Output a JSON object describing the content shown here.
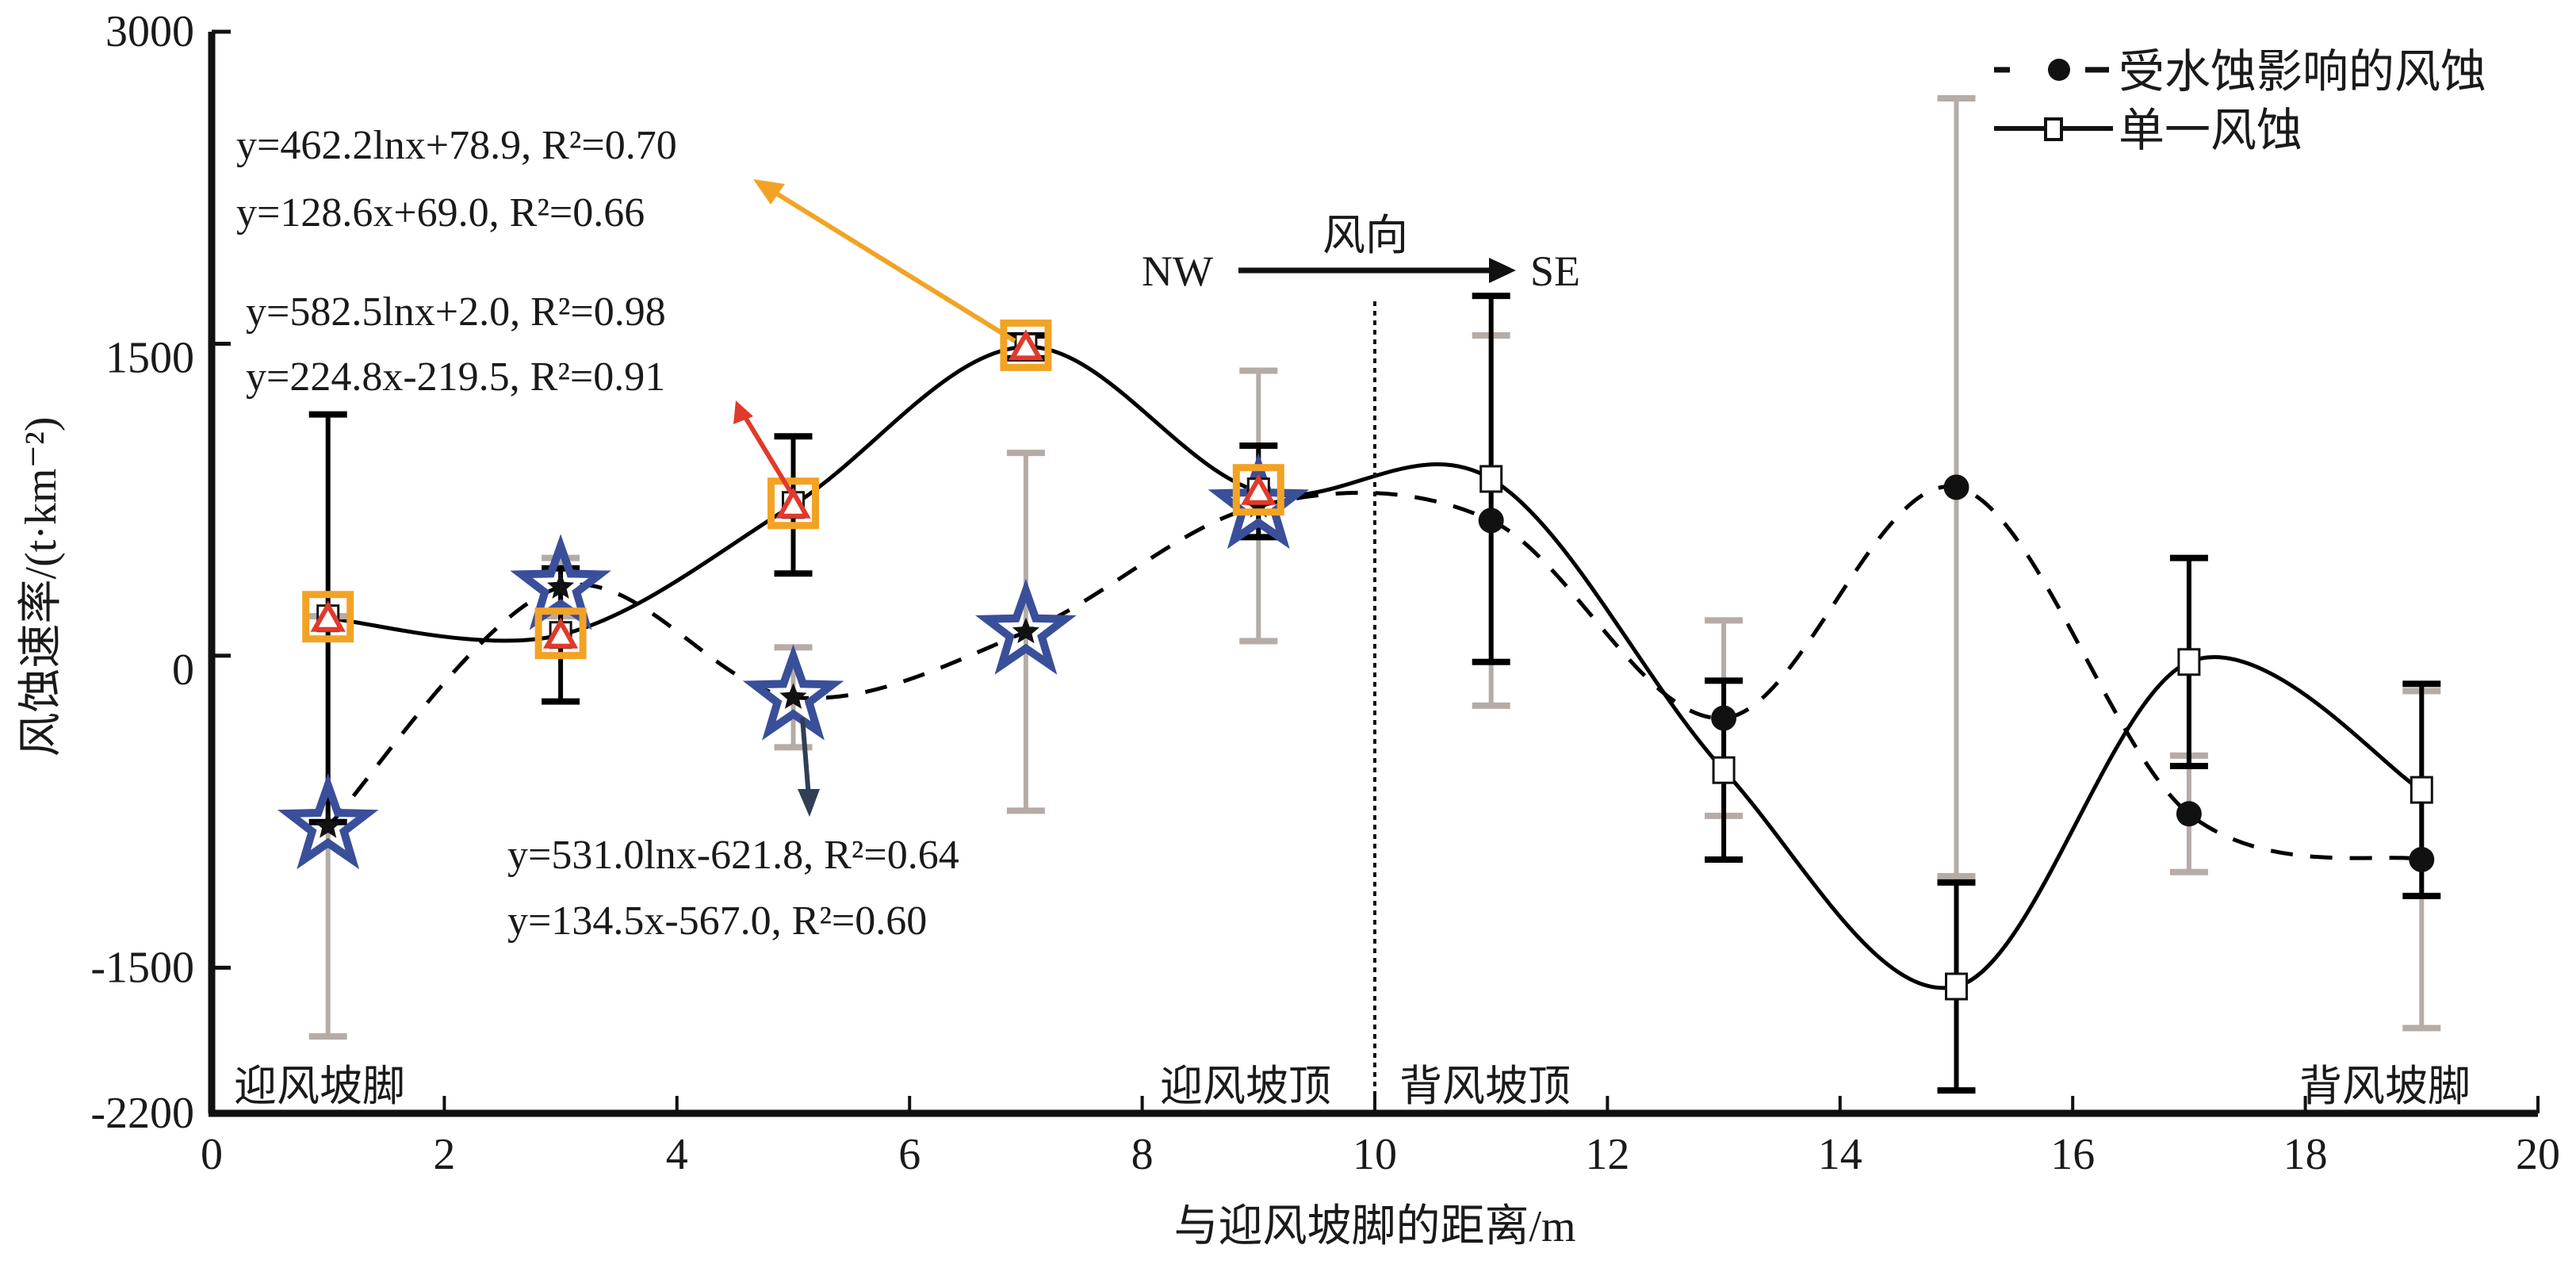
{
  "chart_data": {
    "type": "line",
    "title": "",
    "xlabel": "与迎风坡脚的距离/m",
    "ylabel": "风蚀速率/(t·km⁻²)",
    "xlim": [
      0,
      20
    ],
    "ylim": [
      -2200,
      3000
    ],
    "xticks": [
      0,
      2,
      4,
      6,
      8,
      10,
      12,
      14,
      16,
      18,
      20
    ],
    "yticks": [
      3000,
      1500,
      0,
      -1500,
      -2200
    ],
    "grid": false,
    "legend_position": "top-right",
    "x": [
      1,
      3,
      5,
      7,
      9,
      11,
      13,
      15,
      17,
      19
    ],
    "series": [
      {
        "name": "受水蚀影响的风蚀",
        "line_style": "dashed",
        "marker": "filled-circle",
        "color": "#000000",
        "error_color": "#b5aca7",
        "values": [
          -820,
          330,
          -200,
          115,
          720,
          650,
          -300,
          810,
          -760,
          -980
        ],
        "errors": [
          1010,
          140,
          240,
          860,
          650,
          890,
          470,
          1870,
          280,
          810
        ]
      },
      {
        "name": "单一风蚀",
        "line_style": "solid",
        "marker": "open-square",
        "color": "#000000",
        "error_color": "#000000",
        "values": [
          180,
          100,
          725,
          1485,
          790,
          850,
          -550,
          -1590,
          -30,
          -645
        ],
        "errors": [
          980,
          320,
          330,
          55,
          220,
          880,
          430,
          500,
          500,
          510
        ]
      }
    ],
    "highlight_markers": {
      "orange_squares_x": [
        1,
        3,
        5,
        7,
        9
      ],
      "blue_stars_x": [
        1,
        3,
        5,
        7,
        9
      ],
      "orange_color": "#f2a325",
      "star_color": "#3a4f9a",
      "triangle_color": "#e03a2c"
    },
    "fit_equations": [
      {
        "lines": [
          "y=462.2lnx+78.9, R²=0.70",
          "y=128.6x+69.0, R²=0.66"
        ],
        "arrow_color": "#f2a325",
        "points_to_x": 7
      },
      {
        "lines": [
          "y=582.5lnx+2.0, R²=0.98",
          "y=224.8x-219.5, R²=0.91"
        ],
        "arrow_color": "#e03a2c",
        "points_to_x": 5
      },
      {
        "lines": [
          "y=531.0lnx-621.8, R²=0.64",
          "y=134.5x-567.0, R²=0.60"
        ],
        "arrow_color": "#2f3f55",
        "points_to_x": 5
      }
    ],
    "annotations": {
      "wind_direction_label": "风向",
      "from": "NW",
      "to": "SE",
      "divider_x": 10,
      "positions": [
        "迎风坡脚",
        "迎风坡顶",
        "背风坡顶",
        "背风坡脚"
      ]
    }
  }
}
